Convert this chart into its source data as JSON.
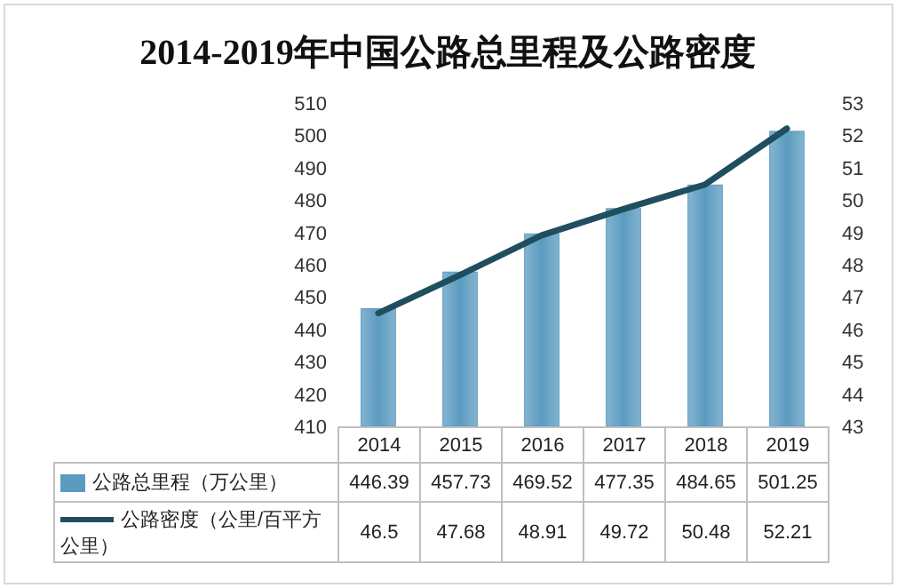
{
  "chart_data": {
    "type": "bar",
    "title": "2014-2019年中国公路总里程及公路密度",
    "categories": [
      "2014",
      "2015",
      "2016",
      "2017",
      "2018",
      "2019"
    ],
    "series": [
      {
        "name": "公路总里程（万公里）",
        "color": "#5b9bc0",
        "values": [
          446.39,
          457.73,
          469.52,
          477.35,
          484.65,
          501.25
        ]
      },
      {
        "name": "公路密度（公里/百平方公里）",
        "type": "line",
        "axis": "y2",
        "color": "#1f4e5f",
        "values": [
          46.5,
          47.68,
          48.91,
          49.72,
          50.48,
          52.21
        ]
      }
    ],
    "ylim": [
      410,
      510
    ],
    "yticks": [
      410,
      420,
      430,
      440,
      450,
      460,
      470,
      480,
      490,
      500,
      510
    ],
    "y2lim": [
      43,
      53
    ],
    "y2ticks": [
      43,
      44,
      45,
      46,
      47,
      48,
      49,
      50,
      51,
      52,
      53
    ],
    "data_labels": true,
    "legend": "bottom"
  }
}
